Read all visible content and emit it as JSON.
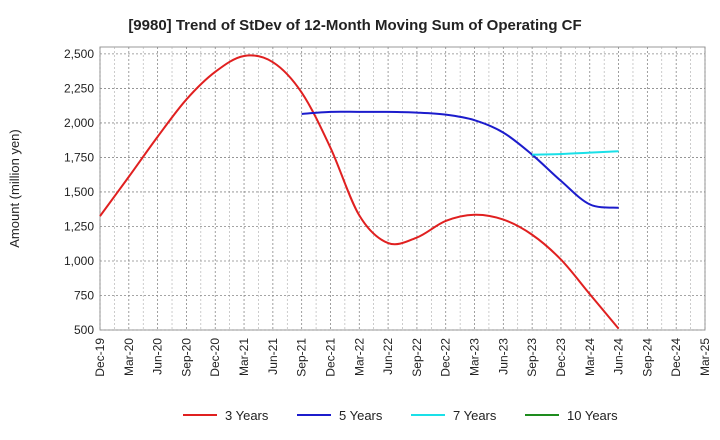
{
  "chart_data": {
    "type": "line",
    "title": "[9980]  Trend of StDev of 12-Month Moving Sum of Operating CF",
    "xlabel": "",
    "ylabel": "Amount (million yen)",
    "ylim": [
      500,
      2550
    ],
    "yticks": [
      500,
      750,
      1000,
      1250,
      1500,
      1750,
      2000,
      2250,
      2500
    ],
    "ytick_labels": [
      "500",
      "750",
      "1,000",
      "1,250",
      "1,500",
      "1,750",
      "2,000",
      "2,250",
      "2,500"
    ],
    "categories": [
      "Dec-19",
      "Mar-20",
      "Jun-20",
      "Sep-20",
      "Dec-20",
      "Mar-21",
      "Jun-21",
      "Sep-21",
      "Dec-21",
      "Mar-22",
      "Jun-22",
      "Sep-22",
      "Dec-22",
      "Mar-23",
      "Jun-23",
      "Sep-23",
      "Dec-23",
      "Mar-24",
      "Jun-24",
      "Sep-24",
      "Dec-24",
      "Mar-25"
    ],
    "grid": true,
    "legend_position": "bottom",
    "series": [
      {
        "name": "3 Years",
        "color": "#e02020",
        "values": [
          1325,
          1610,
          1900,
          2170,
          2370,
          2485,
          2440,
          2220,
          1820,
          1330,
          1130,
          1170,
          1290,
          1335,
          1300,
          1190,
          1010,
          760,
          510,
          null,
          null,
          null
        ]
      },
      {
        "name": "5 Years",
        "color": "#1c1ccc",
        "values": [
          null,
          null,
          null,
          null,
          null,
          null,
          null,
          2065,
          2080,
          2080,
          2080,
          2075,
          2060,
          2020,
          1930,
          1770,
          1580,
          1410,
          1385,
          null,
          null,
          null
        ]
      },
      {
        "name": "7 Years",
        "color": "#1ae0e8",
        "values": [
          null,
          null,
          null,
          null,
          null,
          null,
          null,
          null,
          null,
          null,
          null,
          null,
          null,
          null,
          null,
          1770,
          1775,
          1785,
          1795,
          null,
          null,
          null
        ]
      },
      {
        "name": "10 Years",
        "color": "#1e8c1e",
        "values": [
          null,
          null,
          null,
          null,
          null,
          null,
          null,
          null,
          null,
          null,
          null,
          null,
          null,
          null,
          null,
          null,
          null,
          null,
          null,
          null,
          null,
          null
        ]
      }
    ]
  }
}
